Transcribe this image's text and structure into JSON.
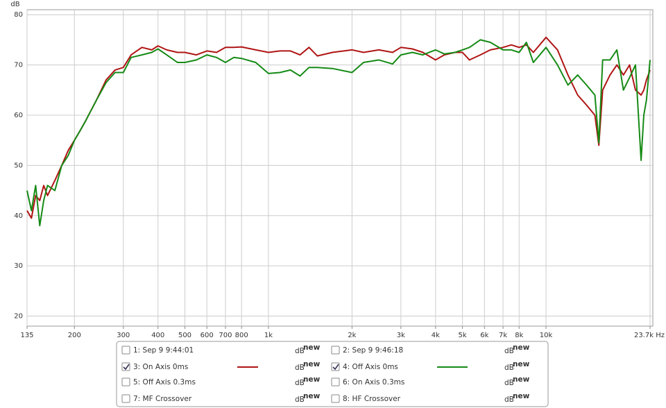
{
  "chart_data": {
    "type": "line",
    "y_label": "dB",
    "xscale": "log",
    "grid": true,
    "xlim": [
      135,
      23700
    ],
    "ylim": [
      18,
      81
    ],
    "yticks": [
      20,
      30,
      40,
      50,
      60,
      70,
      80
    ],
    "xticks": [
      135,
      200,
      300,
      400,
      500,
      600,
      700,
      800,
      {
        "value": 1000,
        "label": "1k"
      },
      {
        "value": 2000,
        "label": "2k"
      },
      {
        "value": 3000,
        "label": "3k"
      },
      {
        "value": 4000,
        "label": "4k"
      },
      {
        "value": 5000,
        "label": "5k"
      },
      {
        "value": 6000,
        "label": "6k"
      },
      {
        "value": 7000,
        "label": "7k"
      },
      {
        "value": 8000,
        "label": "8k"
      },
      {
        "value": 10000,
        "label": "10k"
      },
      {
        "value": 23700,
        "label": "23.7k Hz"
      }
    ],
    "x": [
      135,
      140,
      145,
      150,
      155,
      160,
      170,
      180,
      190,
      200,
      210,
      220,
      240,
      260,
      280,
      300,
      320,
      350,
      380,
      400,
      430,
      470,
      500,
      550,
      600,
      650,
      700,
      750,
      800,
      900,
      1000,
      1100,
      1200,
      1300,
      1400,
      1500,
      1700,
      2000,
      2200,
      2500,
      2800,
      3000,
      3300,
      3600,
      4000,
      4300,
      4700,
      5000,
      5300,
      5800,
      6300,
      7000,
      7500,
      8000,
      8500,
      9000,
      10000,
      11000,
      12000,
      13000,
      14000,
      15000,
      15500,
      16000,
      17000,
      18000,
      19000,
      20000,
      21000,
      22000,
      22500,
      23000,
      23700
    ],
    "series": [
      {
        "name": "3: On Axis 0ms",
        "color": "#b01414",
        "values": [
          41,
          39.5,
          44,
          43,
          46,
          44,
          47,
          50,
          53,
          55,
          57,
          59,
          63,
          67,
          69,
          69.5,
          72,
          73.5,
          73,
          73.8,
          73,
          72.5,
          72.5,
          72,
          72.8,
          72.5,
          73.5,
          73.5,
          73.6,
          73,
          72.5,
          72.8,
          72.8,
          72,
          73.5,
          71.8,
          72.5,
          73,
          72.5,
          73,
          72.5,
          73.5,
          73.2,
          72.5,
          71,
          72,
          72.5,
          72.5,
          71,
          72,
          73,
          73.5,
          74,
          73.5,
          74,
          72.5,
          75.5,
          73,
          68,
          64,
          62,
          60,
          54,
          65,
          68,
          70,
          68,
          70,
          65,
          64,
          65,
          67,
          69
        ]
      },
      {
        "name": "4: Off Axis 0ms",
        "color": "#158a15",
        "values": [
          45,
          41,
          46,
          38,
          43,
          46,
          45,
          50,
          52,
          55,
          57,
          59,
          63,
          66.5,
          68.5,
          68.5,
          71.5,
          72,
          72.5,
          73.2,
          72,
          70.5,
          70.5,
          71,
          72,
          71.5,
          70.5,
          71.5,
          71.3,
          70.5,
          68.3,
          68.5,
          69,
          67.8,
          69.5,
          69.5,
          69.3,
          68.5,
          70.5,
          71,
          70.2,
          72,
          72.5,
          72,
          73,
          72.2,
          72.5,
          73,
          73.5,
          75,
          74.5,
          73,
          73,
          72.5,
          74.5,
          70.5,
          73.5,
          70,
          66,
          68,
          66,
          64,
          54.5,
          71,
          71,
          73,
          65,
          67.5,
          70,
          51,
          60,
          63,
          71
        ]
      }
    ],
    "legend": {
      "unit": "dB",
      "badge": "new",
      "items": [
        {
          "label": "1: Sep 9 9:44:01",
          "checked": false,
          "color": "#c08a10"
        },
        {
          "label": "2: Sep 9 9:46:18",
          "checked": false,
          "color": "#3a8fc0"
        },
        {
          "label": "3: On Axis 0ms",
          "checked": true,
          "color": "#a01010"
        },
        {
          "label": "4: Off Axis 0ms",
          "checked": true,
          "color": "#1a7a1a"
        },
        {
          "label": "5: Off Axis 0.3ms",
          "checked": false,
          "color": "#c0a000"
        },
        {
          "label": "6: On Axis 0.3ms",
          "checked": false,
          "color": "#a0309a"
        },
        {
          "label": "7: MF Crossover",
          "checked": false,
          "color": "#8b1010"
        },
        {
          "label": "8: HF Crossover",
          "checked": false,
          "color": "#8b2080"
        }
      ]
    }
  }
}
